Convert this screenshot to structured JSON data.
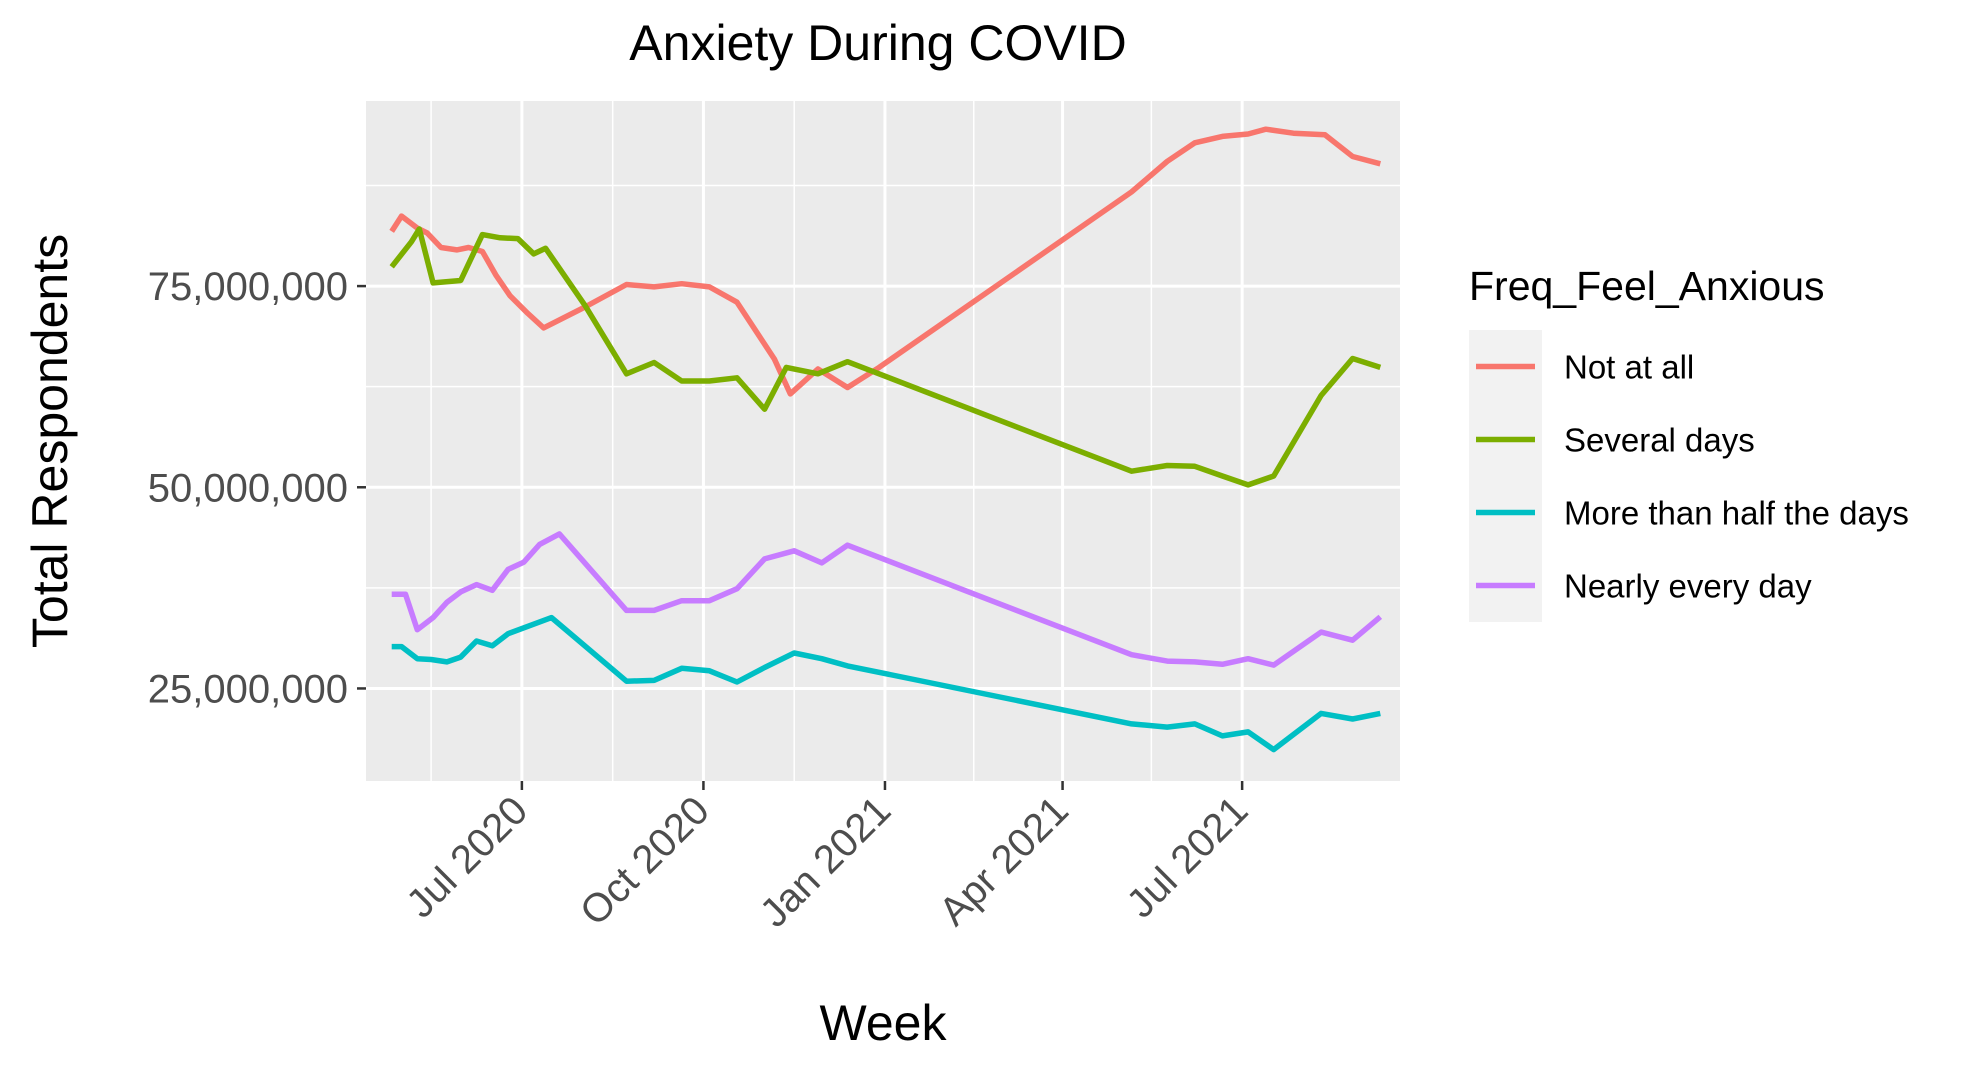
{
  "chart_data": {
    "type": "line",
    "title": "Anxiety During COVID",
    "xlabel": "Week",
    "ylabel": "Total Respondents",
    "x_ticks": [
      {
        "date": "2020-07-01",
        "label": "Jul 2020"
      },
      {
        "date": "2020-10-01",
        "label": "Oct 2020"
      },
      {
        "date": "2021-01-01",
        "label": "Jan 2021"
      },
      {
        "date": "2021-04-01",
        "label": "Apr 2021"
      },
      {
        "date": "2021-07-01",
        "label": "Jul 2021"
      }
    ],
    "x_minor_dates": [
      "2020-05-16",
      "2020-08-16",
      "2020-11-16",
      "2021-02-15",
      "2021-05-16"
    ],
    "xlim": [
      "2020-04-13",
      "2021-09-19"
    ],
    "y_ticks": [
      {
        "value": 25000000,
        "label": "25,000,000"
      },
      {
        "value": 50000000,
        "label": "50,000,000"
      },
      {
        "value": 75000000,
        "label": "75,000,000"
      }
    ],
    "y_minor": [
      37500000,
      62500000,
      87500000
    ],
    "ylim": [
      13500000,
      98000000
    ],
    "grid": true,
    "legend": {
      "title": "Freq_Feel_Anxious",
      "position": "right"
    },
    "series": [
      {
        "name": "Not at all",
        "color": "#F8766D",
        "points": [
          [
            "2020-04-26",
            81800000
          ],
          [
            "2020-05-01",
            83700000
          ],
          [
            "2020-05-09",
            82200000
          ],
          [
            "2020-05-14",
            81600000
          ],
          [
            "2020-05-21",
            79800000
          ],
          [
            "2020-05-29",
            79500000
          ],
          [
            "2020-06-04",
            79800000
          ],
          [
            "2020-06-11",
            79300000
          ],
          [
            "2020-06-18",
            76300000
          ],
          [
            "2020-06-25",
            73800000
          ],
          [
            "2020-07-04",
            71600000
          ],
          [
            "2020-07-12",
            69800000
          ],
          [
            "2020-08-02",
            72400000
          ],
          [
            "2020-08-23",
            75200000
          ],
          [
            "2020-09-06",
            74900000
          ],
          [
            "2020-09-20",
            75300000
          ],
          [
            "2020-10-04",
            74900000
          ],
          [
            "2020-10-18",
            73000000
          ],
          [
            "2020-11-06",
            65900000
          ],
          [
            "2020-11-14",
            61600000
          ],
          [
            "2020-11-28",
            64700000
          ],
          [
            "2020-12-13",
            62400000
          ],
          [
            "2020-12-29",
            64900000
          ],
          [
            "2021-05-06",
            86700000
          ],
          [
            "2021-05-24",
            90500000
          ],
          [
            "2021-06-07",
            92800000
          ],
          [
            "2021-06-21",
            93600000
          ],
          [
            "2021-07-04",
            93900000
          ],
          [
            "2021-07-13",
            94500000
          ],
          [
            "2021-07-27",
            94000000
          ],
          [
            "2021-08-12",
            93800000
          ],
          [
            "2021-08-26",
            91100000
          ],
          [
            "2021-09-09",
            90200000
          ]
        ]
      },
      {
        "name": "Several days",
        "color": "#7CAE00",
        "points": [
          [
            "2020-04-26",
            77400000
          ],
          [
            "2020-05-06",
            80500000
          ],
          [
            "2020-05-10",
            82100000
          ],
          [
            "2020-05-17",
            75400000
          ],
          [
            "2020-05-31",
            75700000
          ],
          [
            "2020-06-11",
            81400000
          ],
          [
            "2020-06-20",
            81000000
          ],
          [
            "2020-06-29",
            80900000
          ],
          [
            "2020-07-07",
            79000000
          ],
          [
            "2020-07-13",
            79700000
          ],
          [
            "2020-08-02",
            72600000
          ],
          [
            "2020-08-23",
            64100000
          ],
          [
            "2020-09-06",
            65500000
          ],
          [
            "2020-09-20",
            63200000
          ],
          [
            "2020-10-04",
            63200000
          ],
          [
            "2020-10-18",
            63600000
          ],
          [
            "2020-11-01",
            59700000
          ],
          [
            "2020-11-12",
            64900000
          ],
          [
            "2020-11-28",
            64100000
          ],
          [
            "2020-12-13",
            65600000
          ],
          [
            "2021-05-06",
            52000000
          ],
          [
            "2021-05-24",
            52700000
          ],
          [
            "2021-06-07",
            52600000
          ],
          [
            "2021-06-21",
            51400000
          ],
          [
            "2021-07-04",
            50300000
          ],
          [
            "2021-07-17",
            51400000
          ],
          [
            "2021-08-10",
            61400000
          ],
          [
            "2021-08-26",
            66000000
          ],
          [
            "2021-09-09",
            64900000
          ]
        ]
      },
      {
        "name": "More than half the days",
        "color": "#00BFC4",
        "points": [
          [
            "2020-04-26",
            30200000
          ],
          [
            "2020-05-01",
            30200000
          ],
          [
            "2020-05-09",
            28700000
          ],
          [
            "2020-05-16",
            28600000
          ],
          [
            "2020-05-24",
            28300000
          ],
          [
            "2020-05-31",
            28900000
          ],
          [
            "2020-06-08",
            30900000
          ],
          [
            "2020-06-16",
            30300000
          ],
          [
            "2020-06-24",
            31800000
          ],
          [
            "2020-07-16",
            33800000
          ],
          [
            "2020-08-23",
            25900000
          ],
          [
            "2020-09-06",
            26000000
          ],
          [
            "2020-09-20",
            27500000
          ],
          [
            "2020-10-04",
            27200000
          ],
          [
            "2020-10-18",
            25800000
          ],
          [
            "2020-11-01",
            27600000
          ],
          [
            "2020-11-16",
            29400000
          ],
          [
            "2020-11-30",
            28700000
          ],
          [
            "2020-12-13",
            27800000
          ],
          [
            "2021-05-06",
            20600000
          ],
          [
            "2021-05-24",
            20200000
          ],
          [
            "2021-06-07",
            20600000
          ],
          [
            "2021-06-21",
            19100000
          ],
          [
            "2021-07-04",
            19600000
          ],
          [
            "2021-07-17",
            17400000
          ],
          [
            "2021-08-10",
            21900000
          ],
          [
            "2021-08-26",
            21200000
          ],
          [
            "2021-09-09",
            21900000
          ]
        ]
      },
      {
        "name": "Nearly every day",
        "color": "#C77CFF",
        "points": [
          [
            "2020-04-26",
            36700000
          ],
          [
            "2020-05-03",
            36700000
          ],
          [
            "2020-05-09",
            32300000
          ],
          [
            "2020-05-17",
            33800000
          ],
          [
            "2020-05-24",
            35700000
          ],
          [
            "2020-05-31",
            37000000
          ],
          [
            "2020-06-08",
            37900000
          ],
          [
            "2020-06-16",
            37200000
          ],
          [
            "2020-06-24",
            39800000
          ],
          [
            "2020-07-02",
            40700000
          ],
          [
            "2020-07-10",
            42900000
          ],
          [
            "2020-07-20",
            44200000
          ],
          [
            "2020-08-23",
            34700000
          ],
          [
            "2020-09-06",
            34700000
          ],
          [
            "2020-09-20",
            35900000
          ],
          [
            "2020-10-04",
            35900000
          ],
          [
            "2020-10-18",
            37400000
          ],
          [
            "2020-11-01",
            41100000
          ],
          [
            "2020-11-16",
            42100000
          ],
          [
            "2020-11-30",
            40600000
          ],
          [
            "2020-12-13",
            42800000
          ],
          [
            "2021-05-06",
            29200000
          ],
          [
            "2021-05-24",
            28400000
          ],
          [
            "2021-06-07",
            28300000
          ],
          [
            "2021-06-21",
            28000000
          ],
          [
            "2021-07-04",
            28700000
          ],
          [
            "2021-07-17",
            27900000
          ],
          [
            "2021-08-10",
            32000000
          ],
          [
            "2021-08-26",
            31000000
          ],
          [
            "2021-09-09",
            33900000
          ]
        ]
      }
    ]
  }
}
